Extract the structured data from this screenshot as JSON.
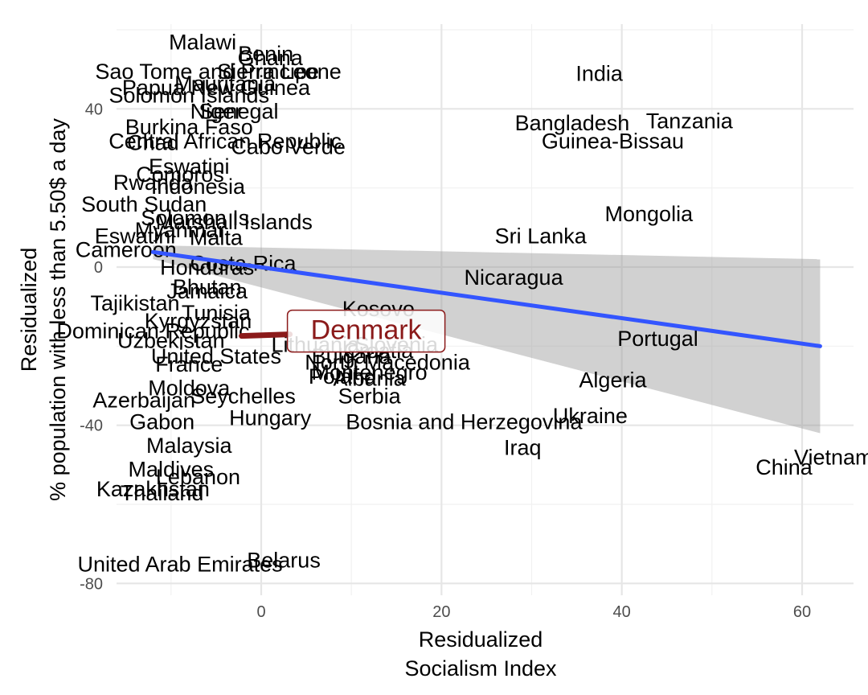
{
  "chart_data": {
    "type": "scatter",
    "xlabel": [
      "Residualized",
      "Socialism Index"
    ],
    "ylabel": [
      "Residualized",
      "% population with less than 5.50$ a day"
    ],
    "xlim": [
      -16,
      66
    ],
    "ylim": [
      -82,
      60
    ],
    "x_ticks": [
      0,
      20,
      40,
      60
    ],
    "y_ticks": [
      -80,
      -40,
      0,
      40
    ],
    "grid": true,
    "highlight": {
      "label": "Denmark",
      "x": 0.5,
      "y": -17,
      "color": "#8b1a1a"
    },
    "fit_line": {
      "x": [
        -12,
        62
      ],
      "y": [
        3.8,
        -20
      ],
      "color": "#3355ff",
      "ci_upper": [
        5.5,
        2
      ],
      "ci_lower": [
        2,
        -42
      ]
    },
    "points": [
      {
        "label": "Malawi",
        "x": -6.5,
        "y": 56.5
      },
      {
        "label": "Benin",
        "x": 0.5,
        "y": 53.5
      },
      {
        "label": "Ghana",
        "x": 1,
        "y": 52.5
      },
      {
        "label": "Sao Tome and Principe",
        "x": -6,
        "y": 49
      },
      {
        "label": "Sierra Leone",
        "x": 2,
        "y": 49
      },
      {
        "label": "Mauritania",
        "x": -4,
        "y": 46
      },
      {
        "label": "Papua New Guinea",
        "x": -5,
        "y": 45
      },
      {
        "label": "Solomon Islands",
        "x": -8,
        "y": 43
      },
      {
        "label": "Senegal",
        "x": -2.5,
        "y": 39
      },
      {
        "label": "Niger",
        "x": -5,
        "y": 39
      },
      {
        "label": "Burkina Faso",
        "x": -8,
        "y": 35
      },
      {
        "label": "Central African Republic",
        "x": -4,
        "y": 31.5
      },
      {
        "label": "Cabo Verde",
        "x": 3,
        "y": 30
      },
      {
        "label": "Chad",
        "x": -12,
        "y": 31
      },
      {
        "label": "Eswatini",
        "x": -8,
        "y": 25
      },
      {
        "label": "Comoros",
        "x": -9,
        "y": 23
      },
      {
        "label": "Rwanda",
        "x": -12,
        "y": 21
      },
      {
        "label": "Indonesia",
        "x": -7,
        "y": 20
      },
      {
        "label": "South Sudan",
        "x": -13,
        "y": 15.5
      },
      {
        "label": "Solomon Is.",
        "x": -7,
        "y": 12
      },
      {
        "label": "Marshall Islands",
        "x": -3,
        "y": 11
      },
      {
        "label": "Myanmar",
        "x": -9,
        "y": 9
      },
      {
        "label": "Eswatini",
        "x": -14,
        "y": 7.5
      },
      {
        "label": "Malta",
        "x": -5,
        "y": 7
      },
      {
        "label": "Cameroon",
        "x": -15,
        "y": 4
      },
      {
        "label": "Costa Rica",
        "x": -2,
        "y": 0.5
      },
      {
        "label": "Honduras",
        "x": -6,
        "y": -0.5
      },
      {
        "label": "Bhutan",
        "x": -6,
        "y": -5.5
      },
      {
        "label": "Jamaica",
        "x": -6,
        "y": -6.5
      },
      {
        "label": "Tajikistan",
        "x": -14,
        "y": -9.5
      },
      {
        "label": "Tunisia",
        "x": -5,
        "y": -12
      },
      {
        "label": "Kyrgyzstan",
        "x": -7,
        "y": -14
      },
      {
        "label": "Dominican Republic",
        "x": -12,
        "y": -16.5
      },
      {
        "label": "Uzbekistan",
        "x": -10,
        "y": -19
      },
      {
        "label": "United States",
        "x": -5,
        "y": -23
      },
      {
        "label": "Bulgaria",
        "x": 10,
        "y": -23
      },
      {
        "label": "Croatia",
        "x": 13,
        "y": -21.5
      },
      {
        "label": "North Macedonia",
        "x": 14,
        "y": -24.5
      },
      {
        "label": "Lithuania",
        "x": 6,
        "y": -20
      },
      {
        "label": "Slovenia",
        "x": 15,
        "y": -20
      },
      {
        "label": "Kosovo",
        "x": 13,
        "y": -11
      },
      {
        "label": "Montenegro",
        "x": 12,
        "y": -27
      },
      {
        "label": "Poland",
        "x": 9,
        "y": -28
      },
      {
        "label": "Albania",
        "x": 12,
        "y": -28.5
      },
      {
        "label": "France",
        "x": -8,
        "y": -25
      },
      {
        "label": "Moldova",
        "x": -8,
        "y": -31
      },
      {
        "label": "Azerbaijan",
        "x": -13,
        "y": -34
      },
      {
        "label": "Seychelles",
        "x": -2,
        "y": -33
      },
      {
        "label": "Serbia",
        "x": 12,
        "y": -33
      },
      {
        "label": "Hungary",
        "x": 1,
        "y": -38.5
      },
      {
        "label": "Bosnia and Herzegovina",
        "x": 22.5,
        "y": -39.5
      },
      {
        "label": "Gabon",
        "x": -11,
        "y": -39.5
      },
      {
        "label": "Malaysia",
        "x": -8,
        "y": -45.5
      },
      {
        "label": "Maldives",
        "x": -10,
        "y": -51.5
      },
      {
        "label": "Lebanon",
        "x": -7,
        "y": -53.5
      },
      {
        "label": "Kazakhstan",
        "x": -12,
        "y": -56.5
      },
      {
        "label": "Thailand",
        "x": -11,
        "y": -57.5
      },
      {
        "label": "United Arab Emirates",
        "x": -9,
        "y": -75.5
      },
      {
        "label": "Belarus",
        "x": 2.5,
        "y": -74.5
      },
      {
        "label": "India",
        "x": 37.5,
        "y": 48.5
      },
      {
        "label": "Bangladesh",
        "x": 34.5,
        "y": 36
      },
      {
        "label": "Tanzania",
        "x": 47.5,
        "y": 36.5
      },
      {
        "label": "Guinea-Bissau",
        "x": 39,
        "y": 31.5
      },
      {
        "label": "Mongolia",
        "x": 43,
        "y": 13
      },
      {
        "label": "Sri Lanka",
        "x": 31,
        "y": 7.5
      },
      {
        "label": "Nicaragua",
        "x": 28,
        "y": -3
      },
      {
        "label": "Portugal",
        "x": 44,
        "y": -18.5
      },
      {
        "label": "Algeria",
        "x": 39,
        "y": -29
      },
      {
        "label": "Ukraine",
        "x": 36.5,
        "y": -38
      },
      {
        "label": "Iraq",
        "x": 29,
        "y": -46
      },
      {
        "label": "Vietnam",
        "x": 63.5,
        "y": -48.5
      },
      {
        "label": "China",
        "x": 58,
        "y": -51
      }
    ]
  }
}
